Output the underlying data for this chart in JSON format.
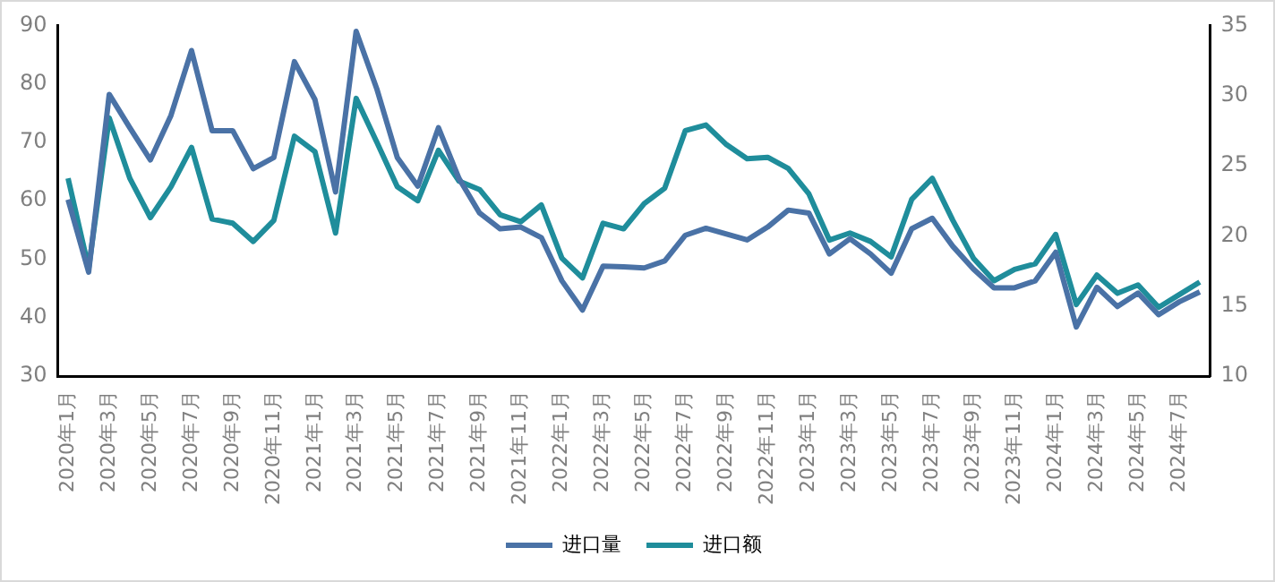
{
  "chart_data": {
    "type": "line",
    "categories": [
      "2020年1月",
      null,
      "2020年3月",
      null,
      "2020年5月",
      null,
      "2020年7月",
      null,
      "2020年9月",
      null,
      "2020年11月",
      null,
      "2021年1月",
      null,
      "2021年3月",
      null,
      "2021年5月",
      null,
      "2021年7月",
      null,
      "2021年9月",
      null,
      "2021年11月",
      null,
      "2022年1月",
      null,
      "2022年3月",
      null,
      "2022年5月",
      null,
      "2022年7月",
      null,
      "2022年9月",
      null,
      "2022年11月",
      null,
      "2023年1月",
      null,
      "2023年3月",
      null,
      "2023年5月",
      null,
      "2023年7月",
      null,
      "2023年9月",
      null,
      "2023年11月",
      null,
      "2024年1月",
      null,
      "2024年3月",
      null,
      "2024年5月",
      null,
      "2024年7月",
      null
    ],
    "series": [
      {
        "name": "进口量",
        "color": "#4a72a6",
        "values": [
          60.2,
          47.8,
          78.2,
          72.5,
          67,
          74.6,
          85.7,
          72,
          72,
          65.5,
          67.4,
          83.8,
          77.3,
          61.5,
          89,
          79.2,
          67.4,
          62.5,
          72.5,
          63.8,
          57.9,
          55.2,
          55.5,
          53.7,
          46.3,
          41.3,
          48.8,
          48.7,
          48.5,
          49.7,
          54.1,
          55.3,
          54.3,
          53.3,
          55.5,
          58.4,
          57.9,
          50.9,
          53.5,
          50.9,
          47.6,
          55.2,
          57,
          52.2,
          48.3,
          45.1,
          45.1,
          46.3,
          51.2,
          38.4,
          45.2,
          41.9,
          44.2,
          40.5,
          42.7,
          44.4
        ]
      },
      {
        "name": "进口额",
        "color": "#1f8d9b",
        "axis": "y2",
        "values": [
          24.1,
          17.7,
          28.4,
          24.1,
          21.3,
          23.5,
          26.3,
          21.2,
          20.9,
          19.6,
          21.1,
          27.1,
          26,
          20.2,
          29.8,
          26.7,
          23.5,
          22.5,
          26.1,
          23.9,
          23.3,
          21.5,
          21,
          22.2,
          18.4,
          17,
          20.9,
          20.5,
          22.3,
          23.4,
          27.5,
          27.9,
          26.5,
          25.5,
          25.6,
          24.8,
          23,
          19.7,
          20.2,
          19.6,
          18.5,
          22.6,
          24.1,
          21.1,
          18.4,
          16.8,
          17.6,
          18,
          20.1,
          15.1,
          17.2,
          15.9,
          16.5,
          14.9,
          15.8,
          16.7
        ]
      }
    ],
    "ylim": [
      30,
      90
    ],
    "yticks": [
      30,
      40,
      50,
      60,
      70,
      80,
      90
    ],
    "y2lim": [
      10,
      35
    ],
    "y2ticks": [
      10,
      15,
      20,
      25,
      30,
      35
    ],
    "legend": "bottom",
    "grid": false,
    "marker": "none",
    "line_style": "solid"
  }
}
